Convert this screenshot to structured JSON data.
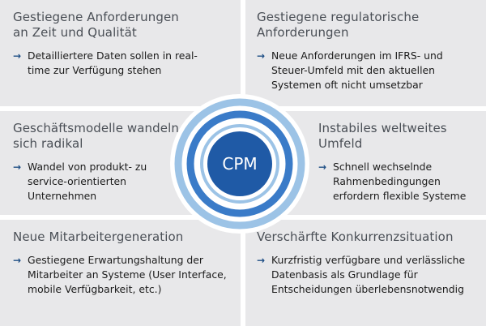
{
  "tiles": [
    {
      "title": "Gestiegene Anforderungen an Zeit und Qualität",
      "bullet": "Detailliertere Daten sollen in real-time zur Verfügung stehen"
    },
    {
      "title": "Gestiegene regulatorische Anforderungen",
      "bullet": "Neue Anforderungen im IFRS- und Steuer-Umfeld mit den aktuellen Systemen oft nicht umsetzbar"
    },
    {
      "title": "Geschäftsmodelle wandeln sich radikal",
      "bullet": "Wandel von produkt- zu service-orientierten Unternehmen"
    },
    {
      "title": "Instabiles weltweites Umfeld",
      "bullet": "Schnell wechselnde Rahmenbedingungen erfordern flexible Systeme"
    },
    {
      "title": "Neue Mitarbeitergeneration",
      "bullet": "Gestiegene Erwartungshaltung der Mitarbeiter an Systeme (User Interface, mobile Verfügbarkeit, etc.)"
    },
    {
      "title": "Verschärfte Konkurrenzsituation",
      "bullet": "Kurzfristig verfügbare und verlässliche Datenbasis als Grundlage für Entscheidungen überlebensnotwendig"
    }
  ],
  "center": {
    "label": "CPM"
  },
  "icons": {
    "bullet": "arrow-right-icon"
  },
  "colors": {
    "tile_bg": "#e8e8ea",
    "ring_outer": "#9cc3e6",
    "ring_mid": "#3a7bc8",
    "core": "#1f5aa6",
    "title_text": "#4a4f56",
    "arrow": "#1f4f86"
  }
}
